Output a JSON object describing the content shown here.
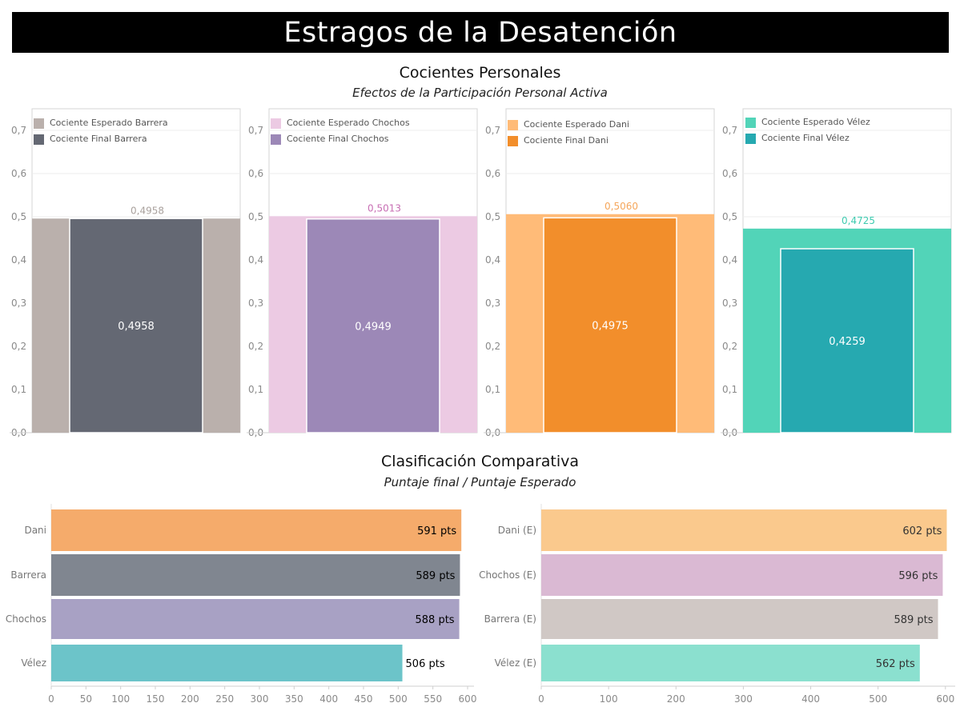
{
  "title": "Estragos de la Desatención",
  "section1": {
    "title": "Cocientes Personales",
    "subtitle": "Efectos de la Participación Personal Activa"
  },
  "section2": {
    "title": "Clasificación Comparativa",
    "subtitle": "Puntaje final / Puntaje Esperado"
  },
  "chart_data": [
    {
      "type": "bar",
      "legend": [
        "Cociente Esperado Barrera",
        "Cociente Final Barrera"
      ],
      "series": [
        {
          "name": "Cociente Esperado Barrera",
          "values": [
            0.4958
          ],
          "labels": [
            "0,4958"
          ],
          "color": "#bab0ac",
          "label_color": "#a9a19d"
        },
        {
          "name": "Cociente Final Barrera",
          "values": [
            0.4958
          ],
          "labels": [
            "0,4958"
          ],
          "color": "#646873"
        }
      ],
      "ylim": [
        0,
        0.75
      ],
      "yticks": [
        "0,0",
        "0,1",
        "0,2",
        "0,3",
        "0,4",
        "0,5",
        "0,6",
        "0,7"
      ],
      "grid": true,
      "legend_position": "top-left"
    },
    {
      "type": "bar",
      "legend": [
        "Cociente Esperado Chochos",
        "Cociente Final Chochos"
      ],
      "series": [
        {
          "name": "Cociente Esperado Chochos",
          "values": [
            0.5013
          ],
          "labels": [
            "0,5013"
          ],
          "color": "#eccae3",
          "label_color": "#c86fb4"
        },
        {
          "name": "Cociente Final Chochos",
          "values": [
            0.4949
          ],
          "labels": [
            "0,4949"
          ],
          "color": "#9c88b7"
        }
      ],
      "ylim": [
        0,
        0.75
      ],
      "yticks": [
        "0,0",
        "0,1",
        "0,2",
        "0,3",
        "0,4",
        "0,5",
        "0,6",
        "0,7"
      ],
      "grid": true,
      "legend_position": "top-left"
    },
    {
      "type": "bar",
      "legend": [
        "Cociente Esperado Dani",
        "Cociente Final Dani"
      ],
      "series": [
        {
          "name": "Cociente Esperado Dani",
          "values": [
            0.506
          ],
          "labels": [
            "0,5060"
          ],
          "color": "#ffbb78",
          "label_color": "#f5a65b"
        },
        {
          "name": "Cociente Final Dani",
          "values": [
            0.4975
          ],
          "labels": [
            "0,4975"
          ],
          "color": "#f28e2b"
        }
      ],
      "ylim": [
        0,
        0.75
      ],
      "yticks": [
        "0,0",
        "0,1",
        "0,2",
        "0,3",
        "0,4",
        "0,5",
        "0,6",
        "0,7"
      ],
      "grid": true,
      "legend_position": "top-left"
    },
    {
      "type": "bar",
      "legend": [
        "Cociente Esperado Vélez",
        "Cociente Final Vélez"
      ],
      "series": [
        {
          "name": "Cociente Esperado Vélez",
          "values": [
            0.4725
          ],
          "labels": [
            "0,4725"
          ],
          "color": "#52d4b8",
          "label_color": "#3fcbb0"
        },
        {
          "name": "Cociente Final Vélez",
          "values": [
            0.4259
          ],
          "labels": [
            "0,4259"
          ],
          "color": "#26a9b0"
        }
      ],
      "ylim": [
        0,
        0.75
      ],
      "yticks": [
        "0,0",
        "0,1",
        "0,2",
        "0,3",
        "0,4",
        "0,5",
        "0,6",
        "0,7"
      ],
      "grid": true,
      "legend_position": "top-left"
    },
    {
      "type": "bar",
      "orientation": "horizontal",
      "categories": [
        "Dani",
        "Barrera",
        "Chochos",
        "Vélez"
      ],
      "values": [
        591,
        589,
        588,
        506
      ],
      "labels": [
        "591 pts",
        "589 pts",
        "588 pts",
        "506 pts"
      ],
      "colors": [
        "#f5ab6b",
        "#808690",
        "#a8a1c4",
        "#6cc4c9"
      ],
      "xlim": [
        0,
        600
      ],
      "xticks": [
        "0",
        "50",
        "100",
        "150",
        "200",
        "250",
        "300",
        "350",
        "400",
        "450",
        "500",
        "550",
        "600"
      ]
    },
    {
      "type": "bar",
      "orientation": "horizontal",
      "categories": [
        "Dani (E)",
        "Chochos (E)",
        "Barrera (E)",
        "Vélez (E)"
      ],
      "values": [
        602,
        596,
        589,
        562
      ],
      "labels": [
        "602 pts",
        "596 pts",
        "589 pts",
        "562 pts"
      ],
      "colors": [
        "#fac98d",
        "#dab9d3",
        "#d0c8c5",
        "#8be0cf"
      ],
      "xlim": [
        0,
        605
      ],
      "xticks": [
        "0",
        "100",
        "200",
        "300",
        "400",
        "500",
        "600"
      ]
    }
  ]
}
